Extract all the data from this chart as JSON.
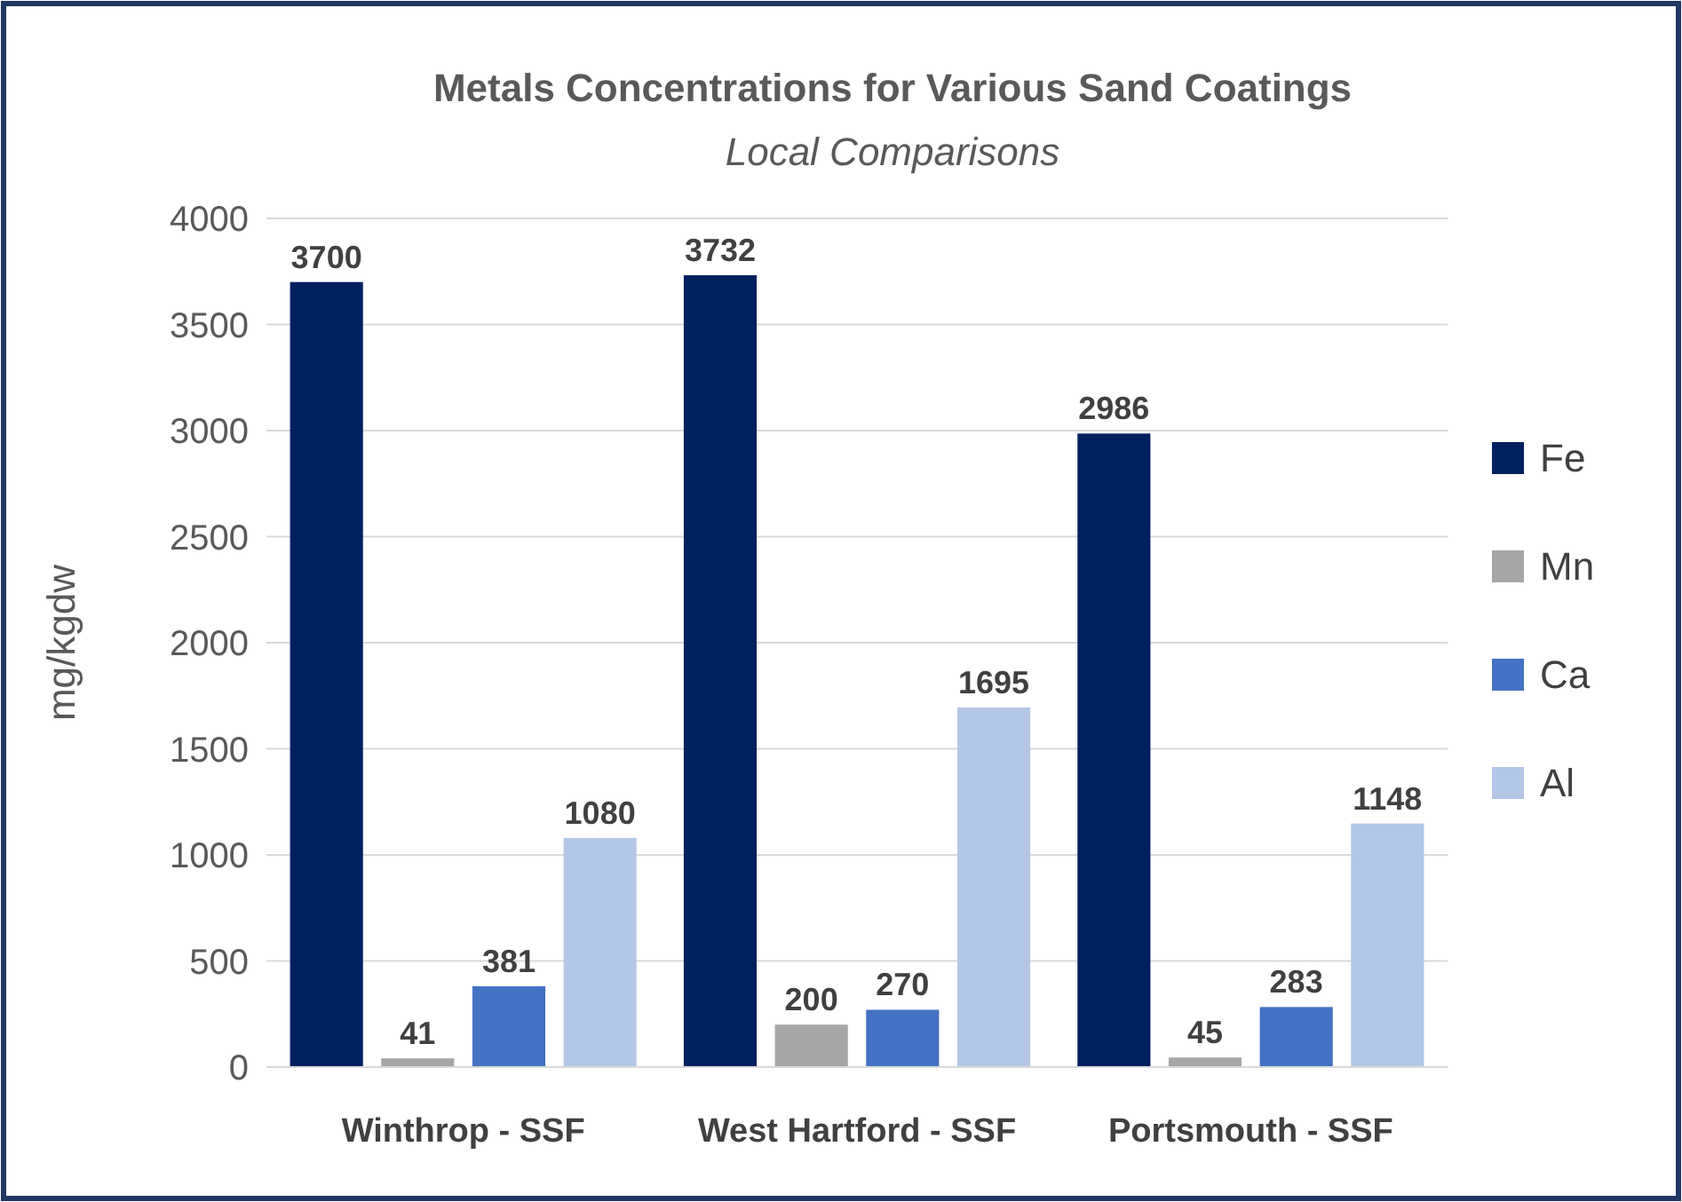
{
  "chart_data": {
    "type": "bar",
    "title": "Metals Concentrations for Various Sand Coatings",
    "subtitle": "Local Comparisons",
    "ylabel": "mg/kgdw",
    "categories": [
      "Winthrop - SSF",
      "West Hartford - SSF",
      "Portsmouth - SSF"
    ],
    "series": [
      {
        "name": "Fe",
        "color": "#002060",
        "values": [
          3700,
          3732,
          2986
        ]
      },
      {
        "name": "Mn",
        "color": "#a6a6a6",
        "values": [
          41,
          200,
          45
        ]
      },
      {
        "name": "Ca",
        "color": "#4472c4",
        "values": [
          381,
          270,
          283
        ]
      },
      {
        "name": "Al",
        "color": "#b4c7e7",
        "values": [
          1080,
          1695,
          1148
        ]
      }
    ],
    "ylim": [
      0,
      4000
    ],
    "yticks": [
      0,
      500,
      1000,
      1500,
      2000,
      2500,
      3000,
      3500,
      4000
    ],
    "grid": "y",
    "legend": "right",
    "data_labels": true
  }
}
